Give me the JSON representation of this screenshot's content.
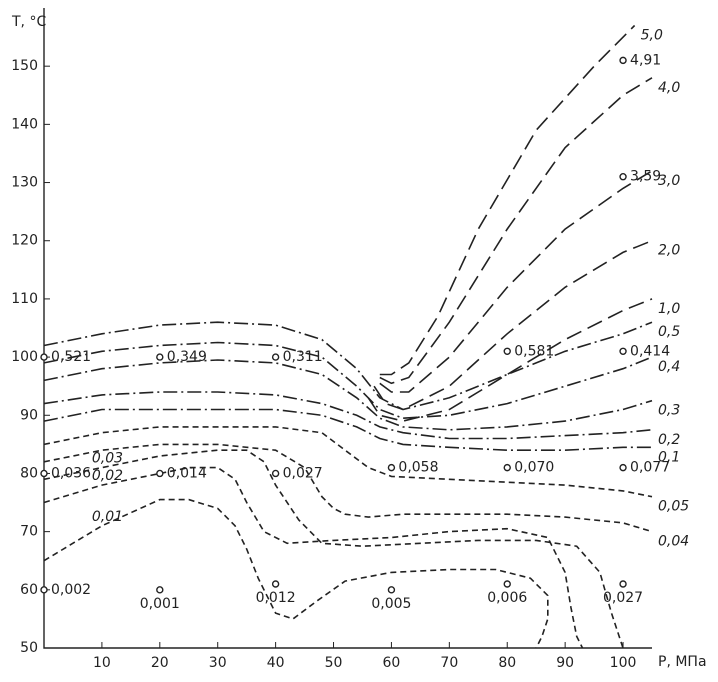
{
  "chart_data": {
    "type": "contour",
    "xlabel": "P, МПа",
    "ylabel": "T, °C",
    "xlim": [
      0,
      105
    ],
    "ylim": [
      50,
      160
    ],
    "xticks": [
      10,
      20,
      30,
      40,
      50,
      60,
      70,
      80,
      90,
      100
    ],
    "yticks": [
      50,
      60,
      70,
      80,
      90,
      100,
      110,
      120,
      130,
      140,
      150
    ],
    "color": "#222222",
    "contours": [
      {
        "label": "5,0",
        "style": "long-dash",
        "x": [
          58,
          60,
          63,
          68,
          75,
          85,
          95,
          102
        ],
        "y": [
          97,
          97,
          99,
          107,
          122,
          139,
          150,
          157
        ]
      },
      {
        "label": "4,0",
        "style": "long-dash",
        "x": [
          58,
          60,
          63,
          70,
          80,
          90,
          100,
          105
        ],
        "y": [
          96.5,
          95.5,
          96.5,
          106,
          122,
          136,
          145,
          148
        ]
      },
      {
        "label": "3,0",
        "style": "long-dash",
        "x": [
          58,
          60,
          63,
          70,
          80,
          90,
          100,
          105
        ],
        "y": [
          95.5,
          94,
          94,
          100,
          112,
          122,
          129,
          132
        ]
      },
      {
        "label": "2,0",
        "style": "long-dash",
        "x": [
          57,
          59,
          62,
          70,
          80,
          90,
          100,
          105
        ],
        "y": [
          95,
          92,
          91,
          95,
          104,
          112,
          118,
          120
        ]
      },
      {
        "label": "1,0",
        "style": "long-dash",
        "x": [
          56,
          58,
          62,
          70,
          80,
          90,
          100,
          105
        ],
        "y": [
          93,
          90,
          89,
          91,
          97,
          103,
          108,
          110
        ]
      },
      {
        "label": "0,5",
        "style": "dash-dot",
        "x": [
          0,
          10,
          20,
          30,
          40,
          48,
          54,
          58,
          62,
          70,
          80,
          90,
          100,
          105
        ],
        "y": [
          102,
          104,
          105.5,
          106,
          105.5,
          103,
          98,
          93,
          91,
          93,
          97,
          101,
          104,
          106
        ]
      },
      {
        "label": "0,4",
        "style": "dash-dot",
        "x": [
          0,
          10,
          20,
          30,
          40,
          48,
          54,
          58,
          62,
          70,
          80,
          90,
          100,
          105
        ],
        "y": [
          99,
          101,
          102,
          102.5,
          102,
          100,
          95,
          91,
          89.5,
          90,
          92,
          95,
          98,
          100
        ]
      },
      {
        "label": "0,3",
        "style": "dash-dot",
        "x": [
          0,
          10,
          20,
          30,
          40,
          48,
          54,
          58,
          62,
          70,
          80,
          90,
          100,
          105
        ],
        "y": [
          96,
          98,
          99,
          99.5,
          99,
          97,
          93,
          89.5,
          88,
          87.5,
          88,
          89,
          91,
          92.5
        ]
      },
      {
        "label": "0,2",
        "style": "dash-dot",
        "x": [
          0,
          10,
          20,
          30,
          40,
          48,
          54,
          58,
          62,
          70,
          80,
          90,
          100,
          105
        ],
        "y": [
          92,
          93.5,
          94,
          94,
          93.5,
          92,
          90,
          88,
          87,
          86,
          86,
          86.5,
          87,
          87.5
        ]
      },
      {
        "label": "0,1",
        "style": "dash-dot",
        "x": [
          0,
          10,
          20,
          30,
          40,
          48,
          54,
          58,
          62,
          70,
          80,
          90,
          100,
          105
        ],
        "y": [
          89,
          91,
          91,
          91,
          91,
          90,
          88,
          86,
          85,
          84.5,
          84,
          84,
          84.5,
          84.5
        ]
      },
      {
        "label": "0,05",
        "style": "short-dash",
        "x": [
          0,
          10,
          20,
          30,
          40,
          48,
          52,
          56,
          60,
          70,
          80,
          90,
          100,
          105
        ],
        "y": [
          85,
          87,
          88,
          88,
          88,
          87,
          84,
          81,
          79.5,
          79,
          78.5,
          78,
          77,
          76
        ]
      },
      {
        "label": "0,04",
        "style": "short-dash",
        "x": [
          0,
          10,
          20,
          30,
          40,
          45,
          48,
          50,
          52,
          56,
          62,
          70,
          80,
          90,
          100,
          105
        ],
        "y": [
          82,
          84,
          85,
          85,
          84,
          81,
          76,
          74,
          73,
          72.5,
          73,
          73,
          73,
          72.5,
          71.5,
          70
        ]
      },
      {
        "label": "0,03",
        "style": "short-dash",
        "x": [
          0,
          10,
          20,
          30,
          35,
          38,
          40,
          44,
          48,
          55,
          65,
          75,
          85,
          92,
          96,
          98,
          100
        ],
        "y": [
          79,
          81,
          83,
          84,
          84,
          82,
          78,
          72,
          68,
          67.5,
          68,
          68.5,
          68.5,
          67.5,
          63,
          56,
          50
        ]
      },
      {
        "label": "0,02",
        "style": "short-dash",
        "x": [
          0,
          10,
          20,
          25,
          30,
          33,
          35,
          38,
          42,
          50,
          60,
          70,
          80,
          87,
          90,
          91,
          92,
          93
        ],
        "y": [
          75,
          78,
          80,
          81,
          81,
          79,
          75,
          70,
          68,
          68.5,
          69,
          70,
          70.5,
          69,
          63,
          57,
          52,
          50
        ]
      },
      {
        "label": "0,01",
        "style": "short-dash",
        "x": [
          0,
          10,
          20,
          25,
          30,
          33,
          35,
          37,
          40,
          43,
          47,
          52,
          60,
          70,
          78,
          84,
          87,
          87,
          86,
          85
        ],
        "y": [
          65,
          71,
          75.5,
          75.5,
          74,
          71,
          67,
          62,
          56,
          55,
          58,
          61.5,
          63,
          63.5,
          63.5,
          62,
          59,
          55,
          52,
          50
        ]
      }
    ],
    "points": {
      "x": [
        0,
        20,
        40,
        80,
        100,
        100,
        100,
        0,
        20,
        40,
        60,
        80,
        100,
        0,
        20,
        40,
        60,
        80,
        100
      ],
      "y": [
        100,
        100,
        100,
        101,
        101,
        151,
        131,
        80,
        80,
        80,
        81,
        81,
        81,
        60,
        60,
        61,
        60,
        61,
        61
      ],
      "values": [
        0.521,
        0.349,
        0.311,
        0.581,
        0.414,
        4.91,
        3.59,
        0.036,
        0.014,
        0.027,
        0.058,
        0.07,
        0.077,
        0.002,
        0.001,
        0.012,
        0.005,
        0.006,
        0.027
      ],
      "value_labels": [
        "0,521",
        "0,349",
        "0,311",
        "0,581",
        "0,414",
        "4,91",
        "3,59",
        "0,036",
        "0,014",
        "0,027",
        "0,058",
        "0,070",
        "0,077",
        "0,002",
        "0,001",
        "0,012",
        "0,005",
        "0,006",
        "0,027"
      ]
    }
  }
}
